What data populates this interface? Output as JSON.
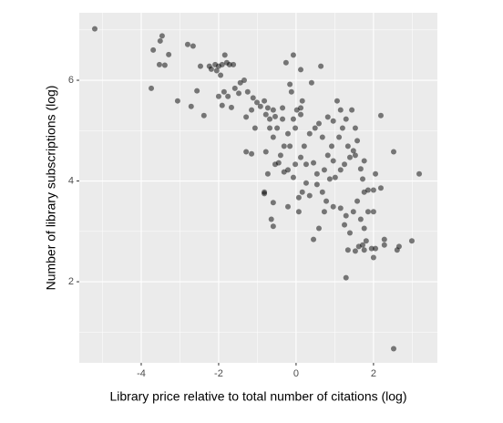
{
  "chart_data": {
    "type": "scatter",
    "x_label": "Library price relative to total number of citations (log)",
    "y_label": "Number of library subscriptions (log)",
    "xlim": [
      -5.6,
      3.65
    ],
    "ylim": [
      0.39,
      7.34
    ],
    "xticks": [
      -4,
      -2,
      0,
      2
    ],
    "yticks": [
      2,
      4,
      6
    ],
    "grid": true,
    "color": "#000000",
    "x": [
      -5.2,
      -3.46,
      -3.51,
      -3.69,
      -3.29,
      -3.53,
      -3.39,
      -3.74,
      -2.8,
      -2.66,
      -3.06,
      -2.71,
      -2.56,
      -2.38,
      -2.47,
      -2.24,
      -2.19,
      -2.09,
      -2.05,
      -2.0,
      -1.91,
      -1.84,
      -1.79,
      -1.72,
      -1.62,
      -1.95,
      -1.86,
      -1.76,
      -2.0,
      -1.91,
      -1.58,
      -1.48,
      -1.34,
      -1.25,
      -1.67,
      -1.44,
      -1.29,
      -1.15,
      -1.11,
      -1.01,
      -0.92,
      -0.82,
      -0.78,
      -0.73,
      -1.06,
      -1.15,
      -0.78,
      -0.68,
      -0.59,
      -0.54,
      -0.68,
      -0.49,
      -0.59,
      -0.35,
      -0.16,
      -0.26,
      -0.07,
      0.12,
      0.64,
      0.4,
      0.12,
      0.02,
      0.12,
      -0.07,
      -0.02,
      -0.21,
      -0.16,
      -0.31,
      -0.4,
      -0.45,
      -0.21,
      -0.02,
      0.12,
      0.21,
      0.35,
      0.49,
      0.59,
      0.68,
      0.26,
      0.45,
      0.54,
      0.73,
      0.82,
      0.92,
      0.96,
      1.11,
      1.2,
      1.29,
      1.44,
      1.53,
      1.58,
      1.06,
      1.15,
      0.82,
      0.96,
      0.26,
      0.16,
      0.07,
      0.35,
      0.54,
      0.68,
      0.78,
      0.87,
      1.01,
      1.15,
      1.25,
      1.39,
      1.34,
      1.48,
      1.67,
      1.72,
      1.86,
      2.0,
      2.05,
      2.19,
      1.76,
      1.58,
      1.48,
      1.29,
      1.15,
      0.96,
      0.73,
      0.59,
      0.07,
      -0.21,
      -0.59,
      -0.82,
      -0.59,
      0.45,
      1.25,
      1.39,
      1.67,
      1.76,
      1.86,
      2.0,
      1.81,
      1.72,
      1.62,
      1.53,
      1.34,
      1.76,
      1.95,
      1.29,
      2.28,
      2.28,
      2.61,
      2.66,
      2.99,
      3.18,
      2.52,
      2.19,
      1.76,
      1.53,
      -1.29,
      -0.73,
      -0.64,
      -0.82,
      2.05,
      2.0,
      2.52,
      -0.35,
      -0.12,
      0.16,
      -0.31,
      -0.07,
      -0.54
    ],
    "y": [
      7.02,
      6.88,
      6.78,
      6.6,
      6.51,
      6.31,
      6.3,
      5.84,
      6.71,
      6.68,
      5.59,
      5.48,
      5.79,
      5.3,
      6.28,
      6.28,
      6.22,
      6.31,
      6.19,
      6.28,
      6.31,
      6.5,
      6.35,
      6.31,
      6.31,
      6.1,
      5.77,
      5.68,
      5.68,
      5.5,
      5.84,
      5.74,
      6.0,
      5.77,
      5.46,
      5.95,
      5.27,
      5.41,
      5.65,
      5.56,
      5.48,
      5.59,
      5.32,
      5.45,
      5.05,
      4.54,
      4.58,
      5.23,
      5.41,
      5.28,
      5.05,
      5.05,
      4.87,
      5.45,
      5.92,
      6.35,
      6.5,
      6.21,
      6.28,
      5.95,
      5.45,
      5.41,
      5.32,
      5.23,
      5.05,
      4.94,
      4.69,
      4.69,
      4.51,
      4.36,
      4.22,
      4.33,
      4.47,
      4.69,
      4.94,
      5.05,
      5.14,
      4.87,
      4.33,
      4.36,
      4.14,
      4.22,
      4.51,
      4.69,
      4.4,
      4.87,
      5.05,
      5.23,
      5.41,
      5.05,
      4.8,
      5.59,
      5.41,
      5.27,
      5.19,
      3.96,
      3.78,
      3.67,
      3.71,
      3.93,
      3.78,
      3.6,
      4.04,
      4.07,
      4.22,
      4.33,
      4.47,
      4.69,
      4.6,
      4.24,
      4.04,
      3.82,
      3.82,
      4.14,
      3.86,
      3.78,
      3.6,
      3.39,
      3.31,
      3.46,
      3.49,
      3.39,
      3.06,
      3.39,
      3.49,
      3.57,
      3.75,
      3.1,
      2.84,
      3.13,
      2.97,
      3.24,
      3.06,
      3.39,
      3.39,
      2.81,
      2.73,
      2.7,
      2.61,
      2.63,
      2.63,
      2.66,
      2.08,
      2.84,
      2.73,
      2.63,
      2.7,
      2.81,
      4.14,
      4.58,
      5.3,
      4.4,
      4.51,
      4.58,
      4.14,
      3.24,
      3.78,
      2.66,
      2.48,
      0.67,
      5.23,
      5.77,
      5.59,
      4.18,
      4.07,
      4.33
    ]
  }
}
